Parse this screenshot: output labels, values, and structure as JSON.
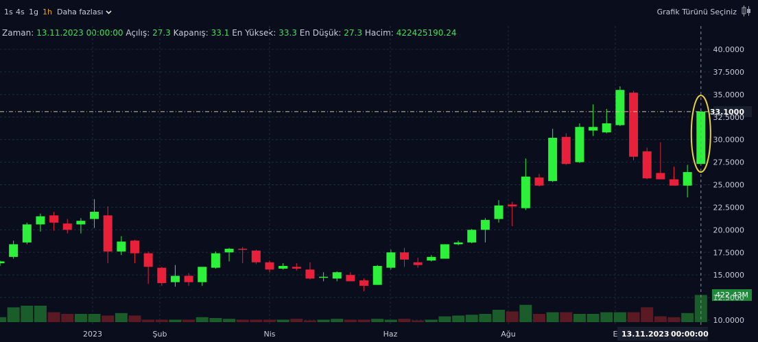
{
  "toolbar": {
    "timeframes": [
      "1s",
      "4s",
      "1g",
      "1h"
    ],
    "active_timeframe": "1h",
    "more_label": "Daha fazlası",
    "chart_type_label": "Grafik Türünü Seçiniz",
    "chart_type_icon": "candlestick-icon"
  },
  "ohlc_bar": {
    "time_label": "Zaman:",
    "time_value": "13.11.2023 00:00:00",
    "open_label": "Açılış:",
    "open_value": "27.3",
    "close_label": "Kapanış:",
    "close_value": "33.1",
    "high_label": "En Yüksek:",
    "high_value": "33.3",
    "low_label": "En Düşük:",
    "low_value": "27.3",
    "volume_label": "Hacim:",
    "volume_value": "422425190.24"
  },
  "crosshair": {
    "price_label": "33.1000",
    "volume_label": "422.43M",
    "date_label": "13.11.2023",
    "time_label": "00:00:00"
  },
  "colors": {
    "background": "#0a0e1c",
    "up": "#2cf03a",
    "down": "#e8203a",
    "volume_up": "#1a5c2a",
    "volume_down": "#5a1a24",
    "grid": "#1e2a3c",
    "highlight_ellipse": "#e6d23c",
    "crosshair_line": "#c8c8a0"
  },
  "chart_data": {
    "type": "candlestick",
    "y_axis": {
      "range": [
        10,
        40
      ],
      "ticks": [
        "10.0000",
        "12.5000",
        "15.0000",
        "17.5000",
        "20.0000",
        "22.5000",
        "25.0000",
        "27.5000",
        "30.0000",
        "32.5000",
        "35.0000",
        "37.5000",
        "40.0000"
      ]
    },
    "x_axis": {
      "labels": [
        "2023",
        "Şub",
        "Nis",
        "Haz",
        "Ağu",
        "E"
      ]
    },
    "grid": true,
    "candles": [
      {
        "o": 16.3,
        "h": 16.6,
        "l": 16.0,
        "c": 16.5
      },
      {
        "o": 17.0,
        "h": 18.8,
        "l": 16.8,
        "c": 18.4
      },
      {
        "o": 18.6,
        "h": 20.8,
        "l": 18.4,
        "c": 20.6
      },
      {
        "o": 20.6,
        "h": 21.8,
        "l": 19.8,
        "c": 21.5
      },
      {
        "o": 21.6,
        "h": 22.0,
        "l": 19.9,
        "c": 20.8
      },
      {
        "o": 20.7,
        "h": 21.2,
        "l": 19.6,
        "c": 20.0
      },
      {
        "o": 20.6,
        "h": 21.3,
        "l": 19.6,
        "c": 21.0
      },
      {
        "o": 21.2,
        "h": 23.4,
        "l": 20.2,
        "c": 22.0
      },
      {
        "o": 21.6,
        "h": 22.6,
        "l": 16.3,
        "c": 17.6
      },
      {
        "o": 17.6,
        "h": 19.3,
        "l": 17.2,
        "c": 18.7
      },
      {
        "o": 18.8,
        "h": 18.9,
        "l": 16.3,
        "c": 17.4
      },
      {
        "o": 17.4,
        "h": 17.6,
        "l": 14.0,
        "c": 15.9
      },
      {
        "o": 15.8,
        "h": 15.9,
        "l": 13.8,
        "c": 14.1
      },
      {
        "o": 14.2,
        "h": 16.1,
        "l": 13.7,
        "c": 14.9
      },
      {
        "o": 14.9,
        "h": 15.2,
        "l": 13.8,
        "c": 14.2
      },
      {
        "o": 14.2,
        "h": 15.8,
        "l": 13.8,
        "c": 15.9
      },
      {
        "o": 15.8,
        "h": 17.6,
        "l": 15.7,
        "c": 17.4
      },
      {
        "o": 17.5,
        "h": 18.0,
        "l": 16.5,
        "c": 17.9
      },
      {
        "o": 17.9,
        "h": 18.1,
        "l": 16.3,
        "c": 17.8
      },
      {
        "o": 17.7,
        "h": 17.8,
        "l": 16.2,
        "c": 16.4
      },
      {
        "o": 16.4,
        "h": 16.6,
        "l": 15.3,
        "c": 15.6
      },
      {
        "o": 15.7,
        "h": 16.3,
        "l": 15.6,
        "c": 16.0
      },
      {
        "o": 15.9,
        "h": 16.3,
        "l": 15.5,
        "c": 15.7
      },
      {
        "o": 15.6,
        "h": 16.4,
        "l": 14.5,
        "c": 14.6
      },
      {
        "o": 14.7,
        "h": 15.3,
        "l": 14.3,
        "c": 14.8
      },
      {
        "o": 14.6,
        "h": 15.4,
        "l": 14.3,
        "c": 15.3
      },
      {
        "o": 15.0,
        "h": 15.3,
        "l": 14.3,
        "c": 14.3
      },
      {
        "o": 14.4,
        "h": 14.6,
        "l": 13.2,
        "c": 13.8
      },
      {
        "o": 13.9,
        "h": 16.1,
        "l": 13.9,
        "c": 16.0
      },
      {
        "o": 15.8,
        "h": 17.8,
        "l": 15.6,
        "c": 17.5
      },
      {
        "o": 17.5,
        "h": 18.0,
        "l": 15.9,
        "c": 16.7
      },
      {
        "o": 16.4,
        "h": 16.9,
        "l": 15.8,
        "c": 16.1
      },
      {
        "o": 16.6,
        "h": 17.2,
        "l": 16.5,
        "c": 17.0
      },
      {
        "o": 16.8,
        "h": 18.4,
        "l": 16.8,
        "c": 18.4
      },
      {
        "o": 18.4,
        "h": 18.8,
        "l": 18.3,
        "c": 18.6
      },
      {
        "o": 18.6,
        "h": 20.1,
        "l": 18.5,
        "c": 20.0
      },
      {
        "o": 20.0,
        "h": 21.3,
        "l": 18.6,
        "c": 21.1
      },
      {
        "o": 21.2,
        "h": 23.3,
        "l": 20.8,
        "c": 22.7
      },
      {
        "o": 22.8,
        "h": 23.1,
        "l": 20.4,
        "c": 22.6
      },
      {
        "o": 22.4,
        "h": 27.9,
        "l": 22.2,
        "c": 25.9
      },
      {
        "o": 25.8,
        "h": 26.2,
        "l": 24.8,
        "c": 24.9
      },
      {
        "o": 25.4,
        "h": 31.2,
        "l": 25.3,
        "c": 30.2
      },
      {
        "o": 30.3,
        "h": 30.7,
        "l": 27.2,
        "c": 27.3
      },
      {
        "o": 27.5,
        "h": 31.8,
        "l": 27.4,
        "c": 31.4
      },
      {
        "o": 31.0,
        "h": 33.9,
        "l": 30.4,
        "c": 31.4
      },
      {
        "o": 30.8,
        "h": 33.4,
        "l": 30.7,
        "c": 31.8
      },
      {
        "o": 31.6,
        "h": 35.9,
        "l": 31.5,
        "c": 35.5
      },
      {
        "o": 35.2,
        "h": 35.4,
        "l": 27.7,
        "c": 28.1
      },
      {
        "o": 28.7,
        "h": 29.1,
        "l": 25.6,
        "c": 25.7
      },
      {
        "o": 26.3,
        "h": 29.7,
        "l": 25.6,
        "c": 25.6
      },
      {
        "o": 25.6,
        "h": 27.0,
        "l": 24.9,
        "c": 24.9
      },
      {
        "o": 24.9,
        "h": 27.2,
        "l": 23.6,
        "c": 26.4
      },
      {
        "o": 27.3,
        "h": 33.3,
        "l": 27.3,
        "c": 33.1
      }
    ],
    "volume_relative": [
      0.3,
      0.9,
      1.0,
      1.0,
      0.6,
      0.5,
      0.5,
      0.5,
      0.4,
      0.55,
      0.4,
      0.15,
      0.15,
      0.15,
      0.15,
      0.3,
      0.25,
      0.2,
      0.15,
      0.15,
      0.15,
      0.15,
      0.2,
      0.1,
      0.15,
      0.2,
      0.15,
      0.15,
      0.2,
      0.15,
      0.2,
      0.1,
      0.15,
      0.35,
      0.4,
      0.45,
      0.5,
      0.75,
      0.65,
      1.05,
      0.5,
      0.6,
      0.6,
      0.5,
      0.5,
      0.6,
      0.6,
      0.6,
      0.9,
      0.35,
      0.3,
      0.55,
      1.65
    ]
  }
}
